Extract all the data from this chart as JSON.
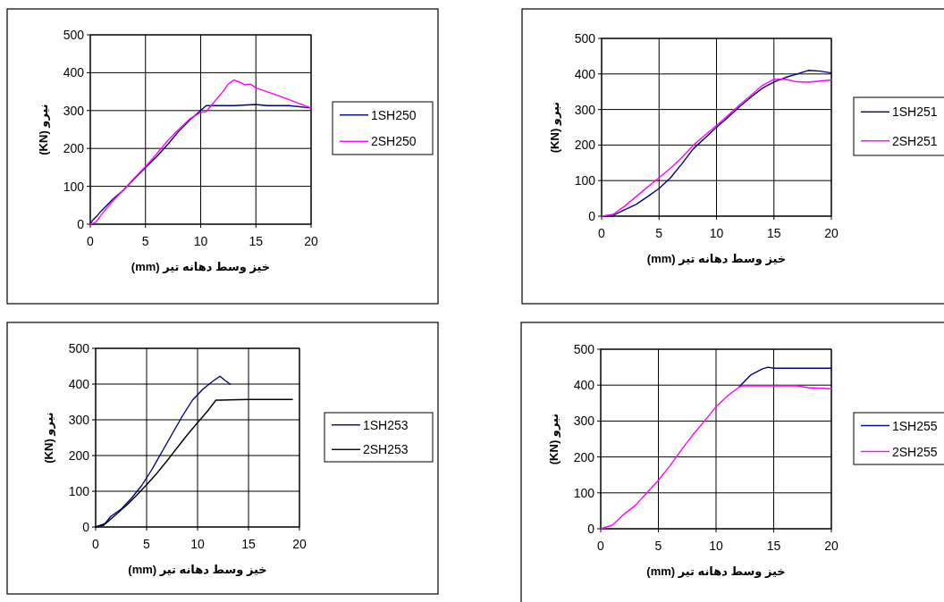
{
  "chart_data": [
    {
      "type": "line",
      "xlabel": "خیز وسط دهانه تیر (mm)",
      "ylabel": "نیرو (KN)",
      "xlim": [
        0,
        20
      ],
      "ylim": [
        0,
        500
      ],
      "xticks": [
        0,
        5,
        10,
        15,
        20
      ],
      "yticks": [
        0,
        100,
        200,
        300,
        400,
        500
      ],
      "grid": true,
      "legend": "right",
      "marker": "none",
      "line_style": "solid",
      "series": [
        {
          "name": "1SH250",
          "color": "#000080",
          "x": [
            0,
            0.2,
            0.7,
            1,
            2,
            3,
            4,
            5,
            6,
            7,
            8,
            9,
            10,
            10.5,
            11,
            13,
            15,
            16,
            18,
            20
          ],
          "values": [
            0,
            10,
            25,
            35,
            65,
            90,
            120,
            150,
            178,
            210,
            245,
            275,
            300,
            313,
            313,
            313,
            316,
            313,
            313,
            307
          ]
        },
        {
          "name": "2SH250",
          "color": "#ff00ff",
          "x": [
            0,
            0.5,
            1,
            2,
            3,
            4,
            5,
            6,
            7,
            8,
            9,
            10,
            10.5,
            11,
            12,
            12.5,
            13,
            13.5,
            14,
            14.5,
            15,
            17,
            20
          ],
          "values": [
            0,
            5,
            25,
            60,
            90,
            122,
            152,
            185,
            220,
            250,
            278,
            295,
            297,
            315,
            350,
            370,
            381,
            375,
            368,
            370,
            360,
            340,
            307
          ]
        }
      ]
    },
    {
      "type": "line",
      "xlabel": "خیز وسط دهانه تیر (mm)",
      "ylabel": "نیرو (KN)",
      "xlim": [
        0,
        20
      ],
      "ylim": [
        0,
        500
      ],
      "xticks": [
        0,
        5,
        10,
        15,
        20
      ],
      "yticks": [
        0,
        100,
        200,
        300,
        400,
        500
      ],
      "grid": true,
      "legend": "right",
      "marker": "none",
      "line_style": "solid",
      "series": [
        {
          "name": "1SH251",
          "color": "#000080",
          "x": [
            0,
            1,
            2,
            3,
            4,
            5,
            6,
            7,
            8,
            9,
            10,
            11,
            12,
            13,
            14,
            15,
            16,
            17,
            18,
            19,
            20
          ],
          "values": [
            0,
            2,
            18,
            33,
            55,
            78,
            108,
            148,
            190,
            220,
            250,
            278,
            308,
            335,
            360,
            377,
            390,
            400,
            410,
            408,
            403
          ]
        },
        {
          "name": "2SH251",
          "color": "#ff00ff",
          "x": [
            0,
            1,
            2,
            3,
            4,
            5,
            6,
            7,
            8,
            9,
            10,
            11,
            12,
            13,
            14,
            15,
            16,
            17,
            18,
            19,
            20
          ],
          "values": [
            0,
            5,
            28,
            55,
            82,
            108,
            135,
            165,
            200,
            228,
            255,
            283,
            313,
            340,
            368,
            385,
            385,
            378,
            377,
            380,
            383
          ]
        }
      ]
    },
    {
      "type": "line",
      "xlabel": "خیز وسط دهانه تیر (mm)",
      "ylabel": "نیرو (KN)",
      "xlim": [
        0,
        20
      ],
      "ylim": [
        0,
        500
      ],
      "xticks": [
        0,
        5,
        10,
        15,
        20
      ],
      "yticks": [
        0,
        100,
        200,
        300,
        400,
        500
      ],
      "grid": true,
      "legend": "right",
      "marker": "none",
      "line_style": "solid",
      "series": [
        {
          "name": "1SH253",
          "color": "#000080",
          "x": [
            0,
            0.8,
            1.5,
            2.5,
            3.5,
            4.5,
            5.5,
            6.5,
            7.5,
            8.5,
            9.5,
            10.5,
            11.5,
            12.2,
            12.7,
            13.2
          ],
          "values": [
            0,
            5,
            30,
            50,
            80,
            115,
            160,
            210,
            260,
            310,
            355,
            385,
            408,
            422,
            410,
            400
          ]
        },
        {
          "name": "2SH253",
          "color": "#000000",
          "x": [
            0,
            1,
            2,
            3,
            4,
            5,
            6,
            7,
            8,
            9,
            10,
            11,
            11.8,
            12.2,
            15,
            19.3
          ],
          "values": [
            0,
            10,
            35,
            60,
            88,
            118,
            150,
            185,
            222,
            258,
            292,
            325,
            355,
            355,
            357,
            357
          ]
        }
      ]
    },
    {
      "type": "line",
      "xlabel": "خیز وسط دهانه تیر (mm)",
      "ylabel": "نیرو (KN)",
      "xlim": [
        0,
        20
      ],
      "ylim": [
        0,
        500
      ],
      "xticks": [
        0,
        5,
        10,
        15,
        20
      ],
      "yticks": [
        0,
        100,
        200,
        300,
        400,
        500
      ],
      "grid": true,
      "legend": "right",
      "marker": "none",
      "line_style": "solid",
      "series": [
        {
          "name": "1SH255",
          "color": "#000080",
          "x": [
            12,
            13,
            14,
            14.5,
            15,
            20
          ],
          "values": [
            395,
            428,
            445,
            450,
            447,
            447
          ]
        },
        {
          "name": "2SH255",
          "color": "#ff00ff",
          "x": [
            0,
            1,
            2,
            3,
            4,
            5,
            6,
            7,
            8,
            9,
            10,
            11,
            12,
            12.3,
            15,
            17,
            18,
            20
          ],
          "values": [
            0,
            10,
            40,
            65,
            100,
            135,
            175,
            220,
            262,
            300,
            340,
            370,
            395,
            398,
            398,
            398,
            393,
            390
          ]
        }
      ]
    }
  ]
}
